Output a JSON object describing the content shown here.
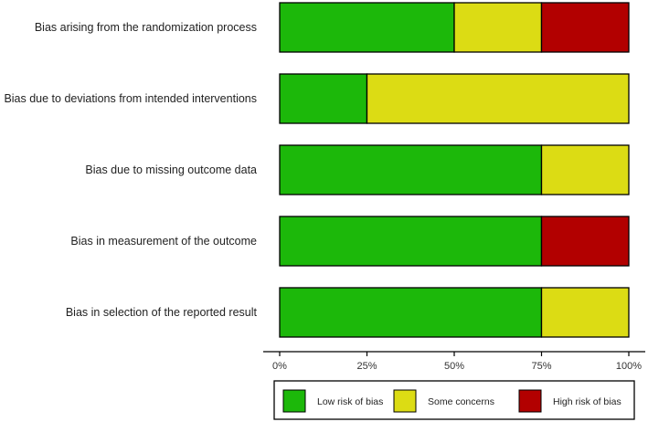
{
  "chart_data": {
    "type": "bar",
    "orientation": "horizontal",
    "stacked": true,
    "categories": [
      "Bias arising from the randomization process",
      "Bias due to deviations from intended interventions",
      "Bias due to missing outcome data",
      "Bias in measurement of the outcome",
      "Bias in selection of the reported result"
    ],
    "series": [
      {
        "name": "Low risk of bias",
        "color": "#1cb80a",
        "values": [
          50,
          25,
          75,
          75,
          75
        ]
      },
      {
        "name": "Some concerns",
        "color": "#dcdc14",
        "values": [
          25,
          75,
          25,
          0,
          25
        ]
      },
      {
        "name": "High risk of bias",
        "color": "#b20000",
        "values": [
          25,
          0,
          0,
          25,
          0
        ]
      }
    ],
    "xlim": [
      0,
      100
    ],
    "xticks": [
      "0%",
      "25%",
      "50%",
      "75%",
      "100%"
    ],
    "legend_position": "bottom",
    "grid": false
  }
}
